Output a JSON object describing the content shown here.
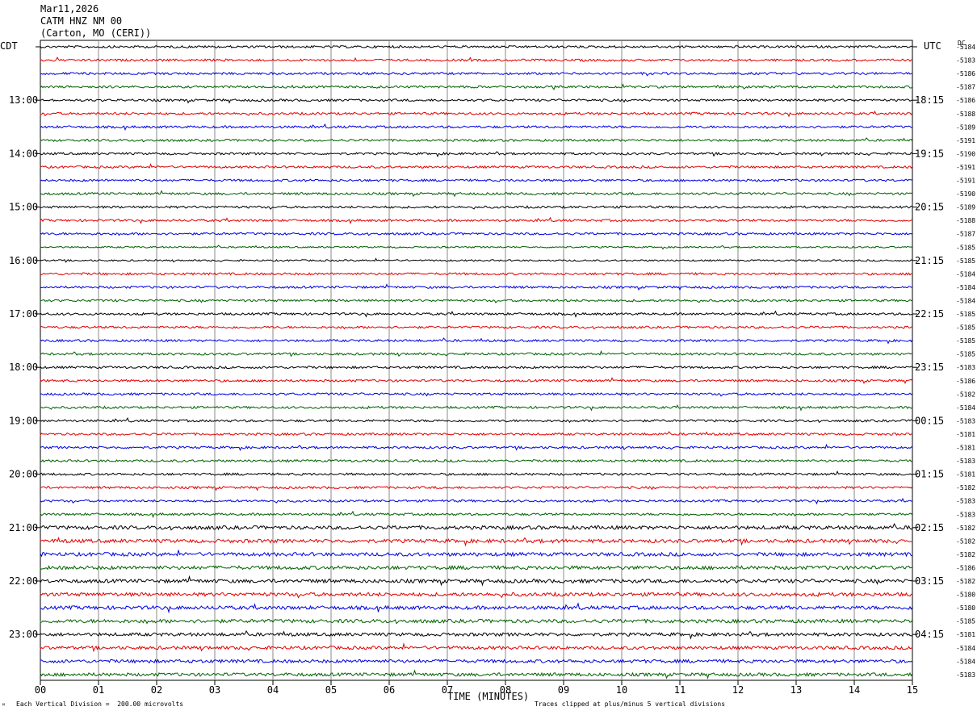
{
  "header": {
    "date": "Mar11,2026",
    "station": "CATM HNZ NM 00",
    "location": "(Carton, MO (CERI))"
  },
  "corner_left": "CDT",
  "corner_right": "UTC",
  "dc_label": "DC",
  "footer": {
    "left": "Each Vertical Division =  200.00 microvolts",
    "right": "Traces clipped at plus/minus 5 vertical divisions",
    "tiny": "ᴹ"
  },
  "chart_data": {
    "type": "line",
    "title": "CATM HNZ NM 00",
    "xlabel": "TIME (MINUTES)",
    "xlim": [
      0,
      15
    ],
    "x_ticks": [
      "00",
      "01",
      "02",
      "03",
      "04",
      "05",
      "06",
      "07",
      "08",
      "09",
      "10",
      "11",
      "12",
      "13",
      "14",
      "15"
    ],
    "rows_per_hour": 4,
    "trace_colors": [
      "#000000",
      "#e00000",
      "#0000e0",
      "#006000"
    ],
    "left_labels": [
      "13:00",
      "14:00",
      "15:00",
      "16:00",
      "17:00",
      "18:00",
      "19:00",
      "20:00",
      "21:00",
      "22:00",
      "23:00"
    ],
    "right_labels": [
      "18:15",
      "19:15",
      "20:15",
      "21:15",
      "22:15",
      "23:15",
      "00:15",
      "01:15",
      "02:15",
      "03:15",
      "04:15"
    ],
    "dc_offsets": [
      "-5184",
      "-5183",
      "-5186",
      "-5187",
      "-5186",
      "-5188",
      "-5189",
      "-5191",
      "-5190",
      "-5191",
      "-5191",
      "-5190",
      "-5189",
      "-5188",
      "-5187",
      "-5185",
      "-5185",
      "-5184",
      "-5184",
      "-5184",
      "-5185",
      "-5185",
      "-5185",
      "-5185",
      "-5183",
      "-5186",
      "-5182",
      "-5184",
      "-5183",
      "-5181",
      "-5181",
      "-5183",
      "-5181",
      "-5182",
      "-5183",
      "-5183",
      "-5182",
      "-5182",
      "-5182",
      "-5186",
      "-5182",
      "-5180",
      "-5180",
      "-5185",
      "-5181",
      "-5184",
      "-5184",
      "-5183"
    ],
    "left_label_start_row": 4,
    "right_label_start_row": 4
  }
}
